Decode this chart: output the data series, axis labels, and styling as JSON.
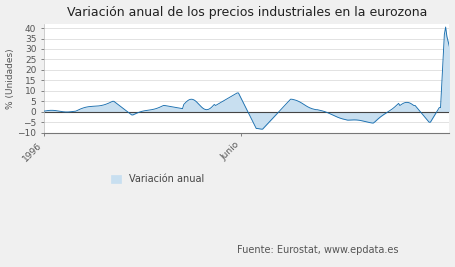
{
  "title": "Variación anual de los precios industriales en la eurozona",
  "ylabel": "% (Unidades)",
  "yticks": [
    -10,
    -5,
    0,
    5,
    10,
    15,
    20,
    25,
    30,
    35,
    40
  ],
  "xtick_labels": [
    "1996",
    "Junio"
  ],
  "line_color": "#1a6faf",
  "fill_color": "#c8dff0",
  "background_color": "#f0f0f0",
  "plot_bg_color": "#ffffff",
  "legend_label": "Variación anual",
  "source_text": "Fuente: Eurostat, www.epdata.es",
  "ylim": [
    -10,
    42
  ],
  "title_fontsize": 9,
  "ylabel_fontsize": 6.5,
  "tick_fontsize": 6.5,
  "legend_fontsize": 7,
  "source_fontsize": 7,
  "n_points": 320,
  "idx_1996": 0,
  "idx_junio": 155
}
